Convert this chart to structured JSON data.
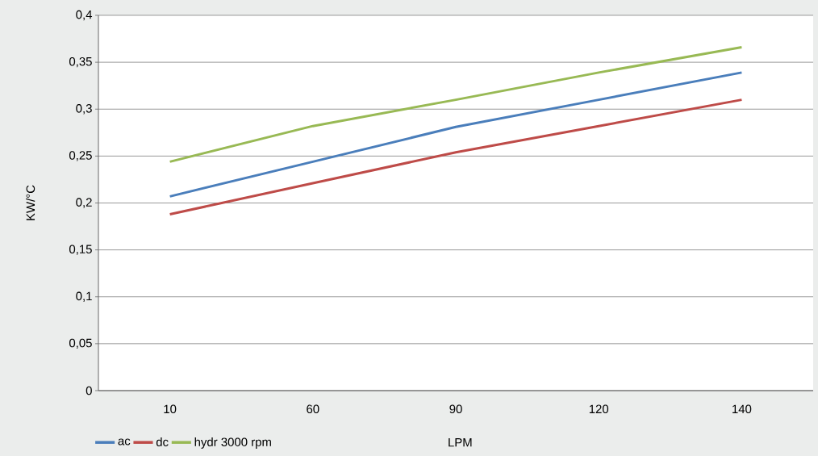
{
  "chart_data": {
    "type": "line",
    "xlabel": "LPM",
    "ylabel": "KW/°C",
    "categories": [
      "10",
      "60",
      "90",
      "120",
      "140"
    ],
    "ylim": [
      0,
      0.4
    ],
    "yticks": [
      0,
      {
        "value": 0.05,
        "label": "0,05"
      },
      {
        "value": 0.1,
        "label": "0,1"
      },
      {
        "value": 0.15,
        "label": "0,15"
      },
      {
        "value": 0.2,
        "label": "0,2"
      },
      {
        "value": 0.25,
        "label": "0,25"
      },
      {
        "value": 0.3,
        "label": "0,3"
      },
      {
        "value": 0.35,
        "label": "0,35"
      },
      {
        "value": 0.4,
        "label": "0,4"
      }
    ],
    "grid": "y",
    "legend": "bottom left",
    "series": [
      {
        "name": "ac",
        "color": "#4a7ebb",
        "values": [
          0.207,
          0.244,
          0.281,
          0.31,
          0.339
        ]
      },
      {
        "name": "dc",
        "color": "#be4b48",
        "values": [
          0.188,
          0.221,
          0.254,
          0.282,
          0.31
        ]
      },
      {
        "name": "hydr 3000 rpm",
        "color": "#98b954",
        "values": [
          0.244,
          0.282,
          0.31,
          0.339,
          0.366
        ]
      }
    ]
  }
}
